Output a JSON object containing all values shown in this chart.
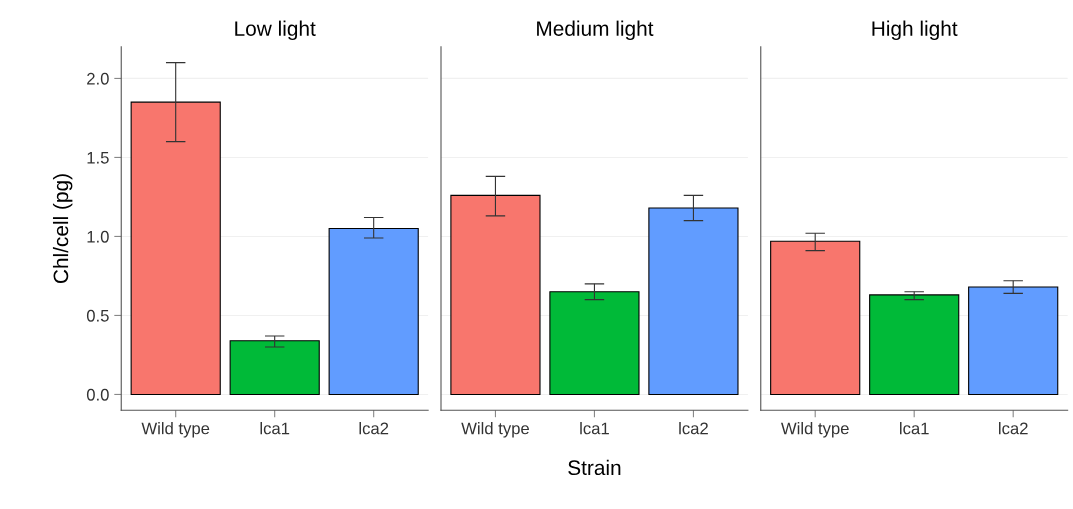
{
  "chart_data": [
    {
      "type": "bar",
      "title": "Low light",
      "ylabel": "Chl/cell (pg)",
      "categories": [
        "Wild type",
        "lca1",
        "lca2"
      ],
      "values": [
        1.85,
        0.34,
        1.05
      ],
      "colors": [
        "#f8766d",
        "#00ba38",
        "#619cff"
      ],
      "errors": [
        [
          1.6,
          2.1
        ],
        [
          0.3,
          0.37
        ],
        [
          0.99,
          1.12
        ]
      ],
      "ylim": [
        -0.1,
        2.2
      ],
      "yticks": [
        {
          "value": 0,
          "label": "0.0"
        },
        0.5,
        {
          "value": 1,
          "label": "1.0"
        },
        1.5,
        {
          "value": 2,
          "label": "2.0"
        }
      ],
      "grid": "y"
    },
    {
      "type": "bar",
      "title": "Medium light",
      "xlabel": "Strain",
      "categories": [
        "Wild type",
        "lca1",
        "lca2"
      ],
      "values": [
        1.26,
        0.65,
        1.18
      ],
      "colors": [
        "#f8766d",
        "#00ba38",
        "#619cff"
      ],
      "errors": [
        [
          1.13,
          1.38
        ],
        [
          0.6,
          0.7
        ],
        [
          1.1,
          1.26
        ]
      ],
      "ylim": [
        -0.1,
        2.2
      ],
      "yticks": [
        {
          "value": 0,
          "label": null
        },
        {
          "value": 0.5,
          "label": null
        },
        {
          "value": 1,
          "label": null
        },
        {
          "value": 1.5,
          "label": null
        },
        {
          "value": 2,
          "label": null
        }
      ],
      "grid": "y",
      "tick_labels": "x"
    },
    {
      "type": "bar",
      "title": "High light",
      "categories": [
        "Wild type",
        "lca1",
        "lca2"
      ],
      "values": [
        0.97,
        0.63,
        0.68
      ],
      "colors": [
        "#f8766d",
        "#00ba38",
        "#619cff"
      ],
      "errors": [
        [
          0.91,
          1.02
        ],
        [
          0.6,
          0.65
        ],
        [
          0.64,
          0.72
        ]
      ],
      "ylim": [
        -0.1,
        2.2
      ],
      "yticks": [
        {
          "value": 0,
          "label": null
        },
        {
          "value": 0.5,
          "label": null
        },
        {
          "value": 1,
          "label": null
        },
        {
          "value": 1.5,
          "label": null
        },
        {
          "value": 2,
          "label": null
        }
      ],
      "grid": "y",
      "tick_labels": "x"
    }
  ]
}
